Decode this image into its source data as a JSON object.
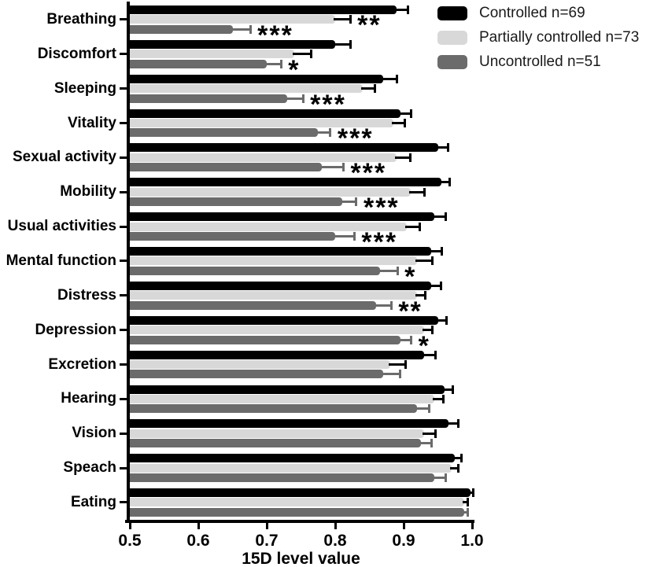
{
  "chart_data": {
    "type": "bar",
    "orientation": "horizontal",
    "title": "",
    "xlabel": "15D level value",
    "xlim": [
      0.5,
      1.0
    ],
    "xticks": [
      0.5,
      0.6,
      0.7,
      0.8,
      0.9,
      1.0
    ],
    "grid": false,
    "legend_position": "top-right",
    "categories": [
      "Breathing",
      "Discomfort",
      "Sleeping",
      "Vitality",
      "Sexual activity",
      "Mobility",
      "Usual activities",
      "Mental function",
      "Distress",
      "Depression",
      "Excretion",
      "Hearing",
      "Vision",
      "Speach",
      "Eating"
    ],
    "series": [
      {
        "name": "Controlled n=69",
        "color": "#000000",
        "error_color": "#000000",
        "values": [
          0.89,
          0.8,
          0.87,
          0.895,
          0.95,
          0.955,
          0.945,
          0.94,
          0.94,
          0.95,
          0.93,
          0.96,
          0.965,
          0.975,
          0.998
        ],
        "errors": [
          0.016,
          0.022,
          0.02,
          0.016,
          0.015,
          0.012,
          0.016,
          0.016,
          0.015,
          0.013,
          0.016,
          0.012,
          0.015,
          0.01,
          0.004
        ],
        "stars": [
          "",
          "",
          "",
          "",
          "",
          "",
          "",
          "",
          "",
          "",
          "",
          "",
          "",
          "",
          ""
        ]
      },
      {
        "name": "Partially controlled n=73",
        "color": "#d8d8d8",
        "error_color": "#000000",
        "values": [
          0.8,
          0.74,
          0.84,
          0.885,
          0.89,
          0.91,
          0.905,
          0.92,
          0.92,
          0.93,
          0.88,
          0.945,
          0.93,
          0.97,
          0.988
        ],
        "errors": [
          0.022,
          0.025,
          0.018,
          0.017,
          0.02,
          0.02,
          0.018,
          0.022,
          0.012,
          0.012,
          0.023,
          0.013,
          0.016,
          0.01,
          0.006
        ],
        "stars": [
          "**",
          "",
          "",
          "",
          "",
          "",
          "",
          "",
          "",
          "",
          "",
          "",
          "",
          "",
          ""
        ]
      },
      {
        "name": "Uncontrolled n=51",
        "color": "#6b6b6b",
        "error_color": "#6b6b6b",
        "values": [
          0.65,
          0.7,
          0.73,
          0.775,
          0.78,
          0.81,
          0.8,
          0.865,
          0.86,
          0.895,
          0.87,
          0.92,
          0.925,
          0.945,
          0.988
        ],
        "errors": [
          0.026,
          0.021,
          0.023,
          0.018,
          0.032,
          0.021,
          0.028,
          0.026,
          0.022,
          0.016,
          0.025,
          0.017,
          0.016,
          0.016,
          0.006
        ],
        "stars": [
          "***",
          "*",
          "***",
          "***",
          "***",
          "***",
          "***",
          "*",
          "**",
          "*",
          "",
          "",
          "",
          "",
          ""
        ]
      }
    ]
  }
}
